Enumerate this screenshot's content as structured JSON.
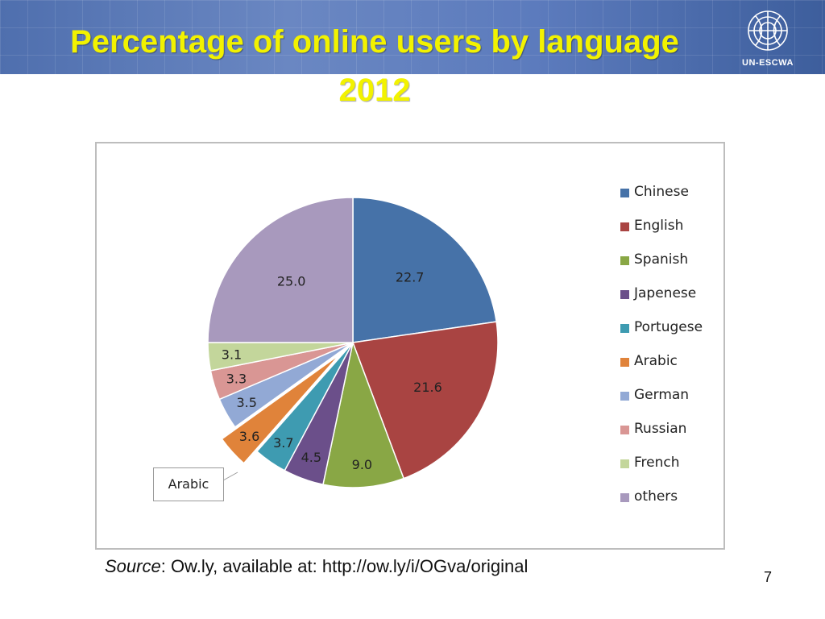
{
  "slide": {
    "title_line1": "Percentage of online users by language",
    "title_line2": "2012",
    "logo_text": "UN-ESCWA",
    "source_label": "Source",
    "source_text": ": Ow.ly, available at: http://ow.ly/i/OGva/original",
    "page_number": "7"
  },
  "colors": {
    "title": "#f2f200",
    "header_band": "#5c7bbd"
  },
  "chart_data": {
    "type": "pie",
    "title": "",
    "categories": [
      "Chinese",
      "English",
      "Spanish",
      "Japenese",
      "Portugese",
      "Arabic",
      "German",
      "Russian",
      "French",
      "others"
    ],
    "values": [
      22.7,
      21.6,
      9.0,
      4.5,
      3.7,
      3.6,
      3.5,
      3.3,
      3.1,
      25.0
    ],
    "value_labels": [
      "22.7",
      "21.6",
      "9.0",
      "4.5",
      "3.7",
      "3.6",
      "3.5",
      "3.3",
      "3.1",
      "25.0"
    ],
    "colors": [
      "#4672a8",
      "#a94442",
      "#89a745",
      "#6b4f8a",
      "#3e9bb1",
      "#e0833a",
      "#92a9d5",
      "#d99694",
      "#c3d69b",
      "#a899bd"
    ],
    "exploded": [
      "Arabic"
    ],
    "legend_position": "right",
    "callout": "Arabic"
  }
}
